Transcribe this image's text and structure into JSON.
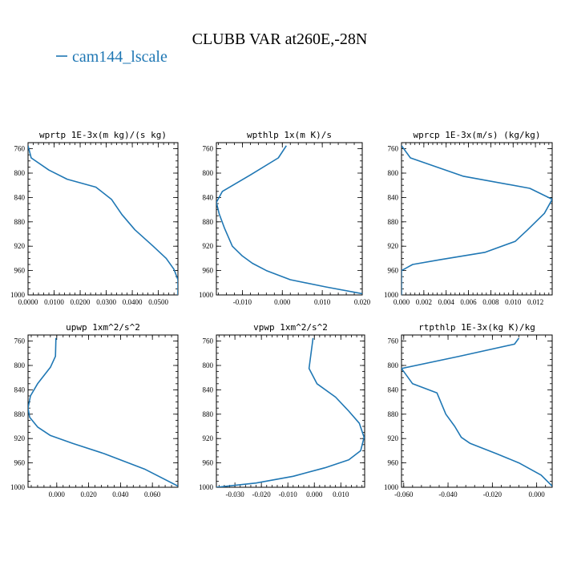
{
  "title": "CLUBB VAR at260E,-28N",
  "legend": {
    "label": "cam144_lscale",
    "color": "#1f77b4"
  },
  "chart_data": [
    {
      "type": "line",
      "title": "wprtp  1E-3x(m kg)/(s kg)",
      "xlim": [
        0.0,
        0.0575
      ],
      "ylim": [
        1000,
        750
      ],
      "xticks": [
        0.0,
        0.01,
        0.02,
        0.03,
        0.04,
        0.05
      ],
      "xtick_labels": [
        "0.0000",
        "0.0100",
        "0.0200",
        "0.0300",
        "0.0400",
        "0.0500"
      ],
      "yticks": [
        760,
        800,
        840,
        880,
        920,
        960,
        1000
      ],
      "series": [
        {
          "name": "cam144_lscale",
          "x": [
            0.0,
            0.0012,
            0.008,
            0.015,
            0.026,
            0.032,
            0.036,
            0.041,
            0.048,
            0.053,
            0.056,
            0.0575,
            0.0575
          ],
          "y": [
            755,
            775,
            795,
            810,
            823,
            843,
            868,
            893,
            920,
            940,
            958,
            975,
            1000
          ]
        }
      ]
    },
    {
      "type": "line",
      "title": "wpthlp  1x(m K)/s",
      "xlim": [
        -0.0165,
        0.02
      ],
      "ylim": [
        1000,
        750
      ],
      "xticks": [
        -0.01,
        0.0,
        0.01,
        0.02
      ],
      "xtick_labels": [
        "-0.010",
        "0.000",
        "0.010",
        "0.020"
      ],
      "yticks": [
        760,
        800,
        840,
        880,
        920,
        960,
        1000
      ],
      "series": [
        {
          "name": "cam144_lscale",
          "x": [
            0.001,
            -0.001,
            -0.008,
            -0.015,
            -0.0165,
            -0.0158,
            -0.0145,
            -0.0125,
            -0.01,
            -0.0075,
            -0.004,
            0.002,
            0.011,
            0.02
          ],
          "y": [
            755,
            775,
            803,
            830,
            848,
            867,
            890,
            920,
            936,
            948,
            960,
            975,
            987,
            998
          ]
        }
      ]
    },
    {
      "type": "line",
      "title": "wprcp  1E-3x(m/s) (kg/kg)",
      "xlim": [
        0.0,
        0.0135
      ],
      "ylim": [
        1000,
        750
      ],
      "xticks": [
        0.0,
        0.002,
        0.004,
        0.006,
        0.008,
        0.01,
        0.012
      ],
      "xtick_labels": [
        "0.000",
        "0.002",
        "0.004",
        "0.006",
        "0.008",
        "0.010",
        "0.012"
      ],
      "yticks": [
        760,
        800,
        840,
        880,
        920,
        960,
        1000
      ],
      "series": [
        {
          "name": "cam144_lscale",
          "x": [
            0.0,
            0.0008,
            0.0055,
            0.0115,
            0.0135,
            0.0128,
            0.0113,
            0.0102,
            0.0075,
            0.0035,
            0.001,
            0.0,
            0.0
          ],
          "y": [
            755,
            775,
            805,
            825,
            843,
            866,
            893,
            912,
            930,
            942,
            950,
            960,
            1000
          ]
        }
      ]
    },
    {
      "type": "line",
      "title": "upwp  1xm^2/s^2",
      "xlim": [
        -0.018,
        0.076
      ],
      "ylim": [
        1000,
        750
      ],
      "xticks": [
        0.0,
        0.02,
        0.04,
        0.06
      ],
      "xtick_labels": [
        "0.000",
        "0.020",
        "0.040",
        "0.060"
      ],
      "yticks": [
        760,
        800,
        840,
        880,
        920,
        960,
        1000
      ],
      "series": [
        {
          "name": "cam144_lscale",
          "x": [
            -0.0005,
            -0.0008,
            -0.004,
            -0.012,
            -0.0165,
            -0.018,
            -0.017,
            -0.012,
            -0.004,
            0.01,
            0.03,
            0.055,
            0.076
          ],
          "y": [
            755,
            785,
            803,
            830,
            850,
            870,
            885,
            901,
            915,
            928,
            945,
            970,
            998
          ]
        }
      ]
    },
    {
      "type": "line",
      "title": "vpwp  1xm^2/s^2",
      "xlim": [
        -0.037,
        0.019
      ],
      "ylim": [
        1000,
        750
      ],
      "xticks": [
        -0.03,
        -0.02,
        -0.01,
        0.0,
        0.01
      ],
      "xtick_labels": [
        "-0.030",
        "-0.020",
        "-0.010",
        "0.000",
        "0.010"
      ],
      "yticks": [
        760,
        800,
        840,
        880,
        920,
        960,
        1000
      ],
      "series": [
        {
          "name": "cam144_lscale",
          "x": [
            -0.0005,
            -0.002,
            0.001,
            0.008,
            0.013,
            0.017,
            0.0188,
            0.0175,
            0.013,
            0.004,
            -0.008,
            -0.022,
            -0.037
          ],
          "y": [
            755,
            805,
            830,
            852,
            875,
            895,
            918,
            940,
            955,
            968,
            982,
            993,
            1000
          ]
        }
      ]
    },
    {
      "type": "line",
      "title": "rtpthlp  1E-3x(kg K)/kg",
      "xlim": [
        -0.061,
        0.007
      ],
      "ylim": [
        1000,
        750
      ],
      "xticks": [
        -0.06,
        -0.04,
        -0.02,
        0.0
      ],
      "xtick_labels": [
        "-0.060",
        "-0.040",
        "-0.020",
        "0.000"
      ],
      "yticks": [
        760,
        800,
        840,
        880,
        920,
        960,
        1000
      ],
      "series": [
        {
          "name": "cam144_lscale",
          "x": [
            -0.008,
            -0.01,
            -0.035,
            -0.061,
            -0.056,
            -0.045,
            -0.041,
            -0.037,
            -0.034,
            -0.03,
            -0.018,
            -0.008,
            0.002,
            0.007
          ],
          "y": [
            755,
            765,
            785,
            805,
            830,
            845,
            880,
            900,
            918,
            928,
            945,
            960,
            980,
            998
          ]
        }
      ]
    }
  ]
}
